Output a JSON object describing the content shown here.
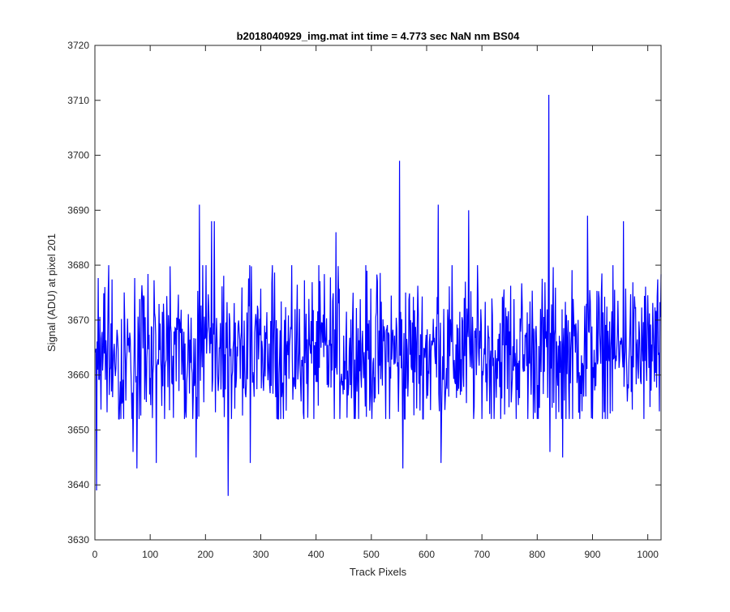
{
  "chart_data": {
    "type": "line",
    "title": "b2018040929_img.mat int time = 4.773 sec  NaN nm BS04",
    "xlabel": "Track Pixels",
    "ylabel": "Signal (ADU) at pixel 201",
    "xlim": [
      0,
      1024
    ],
    "ylim": [
      3630,
      3720
    ],
    "xticks": [
      0,
      100,
      200,
      300,
      400,
      500,
      600,
      700,
      800,
      900,
      1000
    ],
    "yticks": [
      3630,
      3640,
      3650,
      3660,
      3670,
      3680,
      3690,
      3700,
      3710,
      3720
    ],
    "grid": false,
    "legend": "none",
    "series": [
      {
        "color": "#0000ff",
        "samples": 1024,
        "baseline": 3664,
        "noise_amplitude": 7,
        "min": 3638,
        "max": 3711,
        "peaks": [
          {
            "x": 2,
            "y": 3639
          },
          {
            "x": 68,
            "y": 3646
          },
          {
            "x": 75,
            "y": 3643
          },
          {
            "x": 110,
            "y": 3644
          },
          {
            "x": 182,
            "y": 3645
          },
          {
            "x": 188,
            "y": 3691
          },
          {
            "x": 210,
            "y": 3688
          },
          {
            "x": 215,
            "y": 3688
          },
          {
            "x": 240,
            "y": 3638
          },
          {
            "x": 280,
            "y": 3644
          },
          {
            "x": 435,
            "y": 3686
          },
          {
            "x": 550,
            "y": 3699
          },
          {
            "x": 556,
            "y": 3643
          },
          {
            "x": 620,
            "y": 3691
          },
          {
            "x": 625,
            "y": 3644
          },
          {
            "x": 675,
            "y": 3690
          },
          {
            "x": 820,
            "y": 3711
          },
          {
            "x": 822,
            "y": 3646
          },
          {
            "x": 845,
            "y": 3645
          },
          {
            "x": 890,
            "y": 3689
          },
          {
            "x": 955,
            "y": 3688
          }
        ]
      }
    ]
  }
}
